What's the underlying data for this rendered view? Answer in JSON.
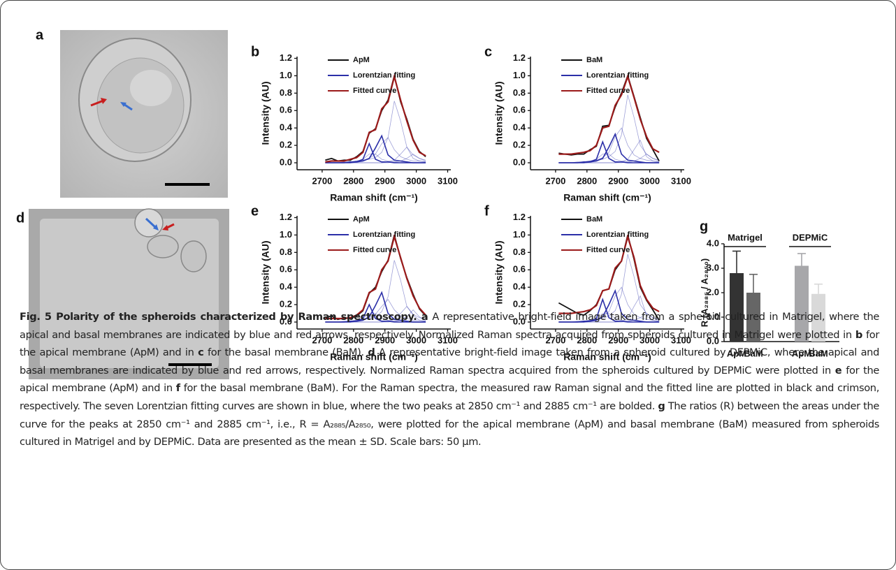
{
  "panels": {
    "a": {
      "label": "a"
    },
    "d": {
      "label": "d"
    }
  },
  "chart_data": [
    {
      "type": "line",
      "panel_label": "b",
      "x_label": "Raman shift (cm⁻¹)",
      "y_label": "Intensity (AU)",
      "xlim": [
        2620,
        3110
      ],
      "xticks": [
        2700,
        2800,
        2900,
        3000,
        3100
      ],
      "ylim": [
        -0.08,
        1.22
      ],
      "yticks": [
        {
          "value": 0,
          "label": "0.0"
        },
        0.2,
        0.4,
        0.6,
        0.8,
        {
          "value": 1,
          "label": "1.0"
        },
        1.2
      ],
      "x": [
        2710,
        2730,
        2750,
        2770,
        2790,
        2810,
        2830,
        2850,
        2870,
        2890,
        2910,
        2930,
        2950,
        2970,
        2990,
        3010,
        3030
      ],
      "bold_components": [
        0,
        1
      ],
      "series": [
        {
          "name": "ApM",
          "color": "#111111",
          "values": [
            0.03,
            0.05,
            0.02,
            0.03,
            0.03,
            0.07,
            0.13,
            0.34,
            0.39,
            0.6,
            0.72,
            1.0,
            0.7,
            0.5,
            0.27,
            0.13,
            0.07
          ]
        },
        {
          "name": "Lorentzian fitting",
          "color": "#2b2fa8",
          "components": [
            [
              0,
              0,
              0,
              0,
              0.01,
              0.01,
              0.04,
              0.22,
              0.04,
              0.01,
              0.01,
              0,
              0,
              0,
              0,
              0,
              0
            ],
            [
              0,
              0,
              0,
              0,
              0,
              0.01,
              0.02,
              0.05,
              0.17,
              0.31,
              0.09,
              0.03,
              0.02,
              0.01,
              0,
              0,
              0
            ],
            [
              0,
              0,
              0,
              0.01,
              0.01,
              0.02,
              0.03,
              0.05,
              0.1,
              0.22,
              0.29,
              0.15,
              0.07,
              0.04,
              0.02,
              0.02,
              0.01
            ],
            [
              0,
              0,
              0,
              0,
              0.01,
              0.02,
              0.03,
              0.04,
              0.06,
              0.12,
              0.29,
              0.71,
              0.48,
              0.18,
              0.09,
              0.05,
              0.03
            ],
            [
              0,
              0,
              0,
              0,
              0,
              0,
              0,
              0,
              0,
              0,
              0.01,
              0.03,
              0.1,
              0.18,
              0.05,
              0.02,
              0.01
            ],
            [
              0,
              0,
              0,
              0,
              0,
              0,
              0,
              0,
              0,
              0,
              0,
              0.01,
              0.02,
              0.05,
              0.1,
              0.05,
              0.02
            ],
            [
              0,
              0,
              0,
              0,
              0.01,
              0.02,
              0.04,
              0.1,
              0.1,
              0.04,
              0.02,
              0.01,
              0,
              0,
              0,
              0,
              0
            ]
          ]
        },
        {
          "name": "Fitted curve",
          "color": "#9b1b1b",
          "values": [
            0.01,
            0.02,
            0.02,
            0.02,
            0.04,
            0.06,
            0.12,
            0.35,
            0.38,
            0.62,
            0.7,
            0.99,
            0.72,
            0.48,
            0.26,
            0.12,
            0.08
          ]
        }
      ]
    },
    {
      "type": "line",
      "panel_label": "c",
      "x_label": "Raman shift (cm⁻¹)",
      "y_label": "Intensity (AU)",
      "xlim": [
        2620,
        3110
      ],
      "xticks": [
        2700,
        2800,
        2900,
        3000,
        3100
      ],
      "ylim": [
        -0.08,
        1.22
      ],
      "yticks": [
        {
          "value": 0,
          "label": "0.0"
        },
        0.2,
        0.4,
        0.6,
        0.8,
        {
          "value": 1,
          "label": "1.0"
        },
        1.2
      ],
      "x": [
        2710,
        2730,
        2750,
        2770,
        2790,
        2810,
        2830,
        2850,
        2870,
        2890,
        2910,
        2930,
        2950,
        2970,
        2990,
        3010,
        3030
      ],
      "bold_components": [
        0,
        1
      ],
      "series": [
        {
          "name": "BaM",
          "color": "#111111",
          "values": [
            0.11,
            0.1,
            0.09,
            0.1,
            0.1,
            0.15,
            0.19,
            0.42,
            0.43,
            0.64,
            0.8,
            1.0,
            0.76,
            0.52,
            0.28,
            0.15,
            0.02
          ]
        },
        {
          "name": "Lorentzian fitting",
          "color": "#2b2fa8",
          "components": [
            [
              0,
              0,
              0,
              0,
              0.01,
              0.01,
              0.04,
              0.24,
              0.05,
              0.01,
              0.01,
              0,
              0,
              0,
              0,
              0,
              0
            ],
            [
              0,
              0,
              0,
              0,
              0,
              0.01,
              0.02,
              0.05,
              0.18,
              0.33,
              0.1,
              0.03,
              0.02,
              0.01,
              0,
              0,
              0
            ],
            [
              0,
              0,
              0,
              0.01,
              0.01,
              0.02,
              0.03,
              0.06,
              0.12,
              0.3,
              0.4,
              0.2,
              0.09,
              0.05,
              0.03,
              0.02,
              0.01
            ],
            [
              0,
              0,
              0,
              0,
              0.01,
              0.02,
              0.03,
              0.04,
              0.07,
              0.13,
              0.32,
              0.78,
              0.52,
              0.2,
              0.1,
              0.05,
              0.03
            ],
            [
              0,
              0,
              0,
              0,
              0,
              0,
              0,
              0,
              0,
              0,
              0.01,
              0.04,
              0.15,
              0.26,
              0.07,
              0.02,
              0.01
            ],
            [
              0,
              0,
              0,
              0,
              0,
              0,
              0,
              0,
              0,
              0,
              0,
              0.01,
              0.02,
              0.05,
              0.1,
              0.05,
              0.02
            ],
            [
              0,
              0,
              0,
              0,
              0.01,
              0.02,
              0.04,
              0.1,
              0.1,
              0.04,
              0.02,
              0.01,
              0,
              0,
              0,
              0,
              0
            ]
          ]
        },
        {
          "name": "Fitted curve",
          "color": "#9b1b1b",
          "values": [
            0.1,
            0.1,
            0.1,
            0.11,
            0.12,
            0.14,
            0.2,
            0.4,
            0.42,
            0.66,
            0.78,
            0.99,
            0.75,
            0.5,
            0.3,
            0.16,
            0.12
          ]
        }
      ]
    },
    {
      "type": "line",
      "panel_label": "e",
      "x_label": "Raman shift (cm⁻¹)",
      "y_label": "Intensity (AU)",
      "xlim": [
        2620,
        3110
      ],
      "xticks": [
        2700,
        2800,
        2900,
        3000,
        3100
      ],
      "ylim": [
        -0.08,
        1.22
      ],
      "yticks": [
        {
          "value": 0,
          "label": "0.0"
        },
        0.2,
        0.4,
        0.6,
        0.8,
        {
          "value": 1,
          "label": "1.0"
        },
        1.2
      ],
      "x": [
        2710,
        2730,
        2750,
        2770,
        2790,
        2810,
        2830,
        2850,
        2870,
        2890,
        2910,
        2930,
        2950,
        2970,
        2990,
        3010,
        3030
      ],
      "bold_components": [
        0,
        1
      ],
      "series": [
        {
          "name": "ApM",
          "color": "#111111",
          "values": [
            0.05,
            0.07,
            0.03,
            0.05,
            0.04,
            0.07,
            0.13,
            0.33,
            0.4,
            0.58,
            0.71,
            1.0,
            0.73,
            0.51,
            0.32,
            0.15,
            0.07
          ]
        },
        {
          "name": "Lorentzian fitting",
          "color": "#2b2fa8",
          "components": [
            [
              0,
              0,
              0,
              0,
              0.01,
              0.01,
              0.04,
              0.2,
              0.04,
              0.01,
              0.01,
              0,
              0,
              0,
              0,
              0,
              0
            ],
            [
              0,
              0,
              0,
              0,
              0,
              0.01,
              0.02,
              0.06,
              0.19,
              0.34,
              0.1,
              0.03,
              0.02,
              0.01,
              0,
              0,
              0
            ],
            [
              0,
              0,
              0,
              0.01,
              0.01,
              0.02,
              0.03,
              0.05,
              0.09,
              0.18,
              0.26,
              0.14,
              0.07,
              0.04,
              0.02,
              0.02,
              0.01
            ],
            [
              0,
              0,
              0,
              0,
              0.01,
              0.02,
              0.03,
              0.04,
              0.06,
              0.12,
              0.29,
              0.71,
              0.48,
              0.18,
              0.09,
              0.05,
              0.03
            ],
            [
              0,
              0,
              0,
              0,
              0,
              0,
              0,
              0,
              0,
              0,
              0.01,
              0.03,
              0.1,
              0.18,
              0.08,
              0.02,
              0.01
            ],
            [
              0,
              0,
              0,
              0,
              0,
              0,
              0,
              0,
              0,
              0,
              0,
              0.01,
              0.02,
              0.06,
              0.14,
              0.06,
              0.02
            ],
            [
              0,
              0,
              0,
              0,
              0.01,
              0.02,
              0.04,
              0.1,
              0.1,
              0.04,
              0.02,
              0.01,
              0,
              0,
              0,
              0,
              0
            ]
          ]
        },
        {
          "name": "Fitted curve",
          "color": "#9b1b1b",
          "values": [
            0.04,
            0.04,
            0.04,
            0.04,
            0.05,
            0.08,
            0.14,
            0.34,
            0.38,
            0.6,
            0.7,
            0.98,
            0.74,
            0.5,
            0.3,
            0.16,
            0.08
          ]
        }
      ]
    },
    {
      "type": "line",
      "panel_label": "f",
      "x_label": "Raman shift (cm⁻¹)",
      "y_label": "Intensity (AU)",
      "xlim": [
        2620,
        3110
      ],
      "xticks": [
        2700,
        2800,
        2900,
        3000,
        3100
      ],
      "ylim": [
        -0.08,
        1.22
      ],
      "yticks": [
        {
          "value": 0,
          "label": "0.0"
        },
        0.2,
        0.4,
        0.6,
        0.8,
        {
          "value": 1,
          "label": "1.0"
        },
        1.2
      ],
      "x": [
        2710,
        2730,
        2750,
        2770,
        2790,
        2810,
        2830,
        2850,
        2870,
        2890,
        2910,
        2930,
        2950,
        2970,
        2990,
        3010,
        3030
      ],
      "bold_components": [
        0,
        1
      ],
      "series": [
        {
          "name": "BaM",
          "color": "#111111",
          "values": [
            0.22,
            0.18,
            0.14,
            0.1,
            0.08,
            0.13,
            0.2,
            0.36,
            0.38,
            0.6,
            0.7,
            1.0,
            0.72,
            0.4,
            0.25,
            0.14,
            0.02
          ]
        },
        {
          "name": "Lorentzian fitting",
          "color": "#2b2fa8",
          "components": [
            [
              0,
              0,
              0,
              0,
              0.01,
              0.01,
              0.04,
              0.26,
              0.05,
              0.01,
              0.01,
              0,
              0,
              0,
              0,
              0,
              0
            ],
            [
              0,
              0,
              0,
              0,
              0,
              0.01,
              0.02,
              0.06,
              0.2,
              0.36,
              0.1,
              0.03,
              0.02,
              0.01,
              0,
              0,
              0
            ],
            [
              0,
              0,
              0,
              0.01,
              0.01,
              0.02,
              0.03,
              0.06,
              0.12,
              0.3,
              0.4,
              0.2,
              0.09,
              0.05,
              0.03,
              0.02,
              0.01
            ],
            [
              0,
              0,
              0,
              0,
              0.01,
              0.02,
              0.03,
              0.04,
              0.07,
              0.13,
              0.32,
              0.78,
              0.52,
              0.2,
              0.1,
              0.05,
              0.03
            ],
            [
              0,
              0,
              0,
              0,
              0,
              0,
              0,
              0,
              0,
              0,
              0.01,
              0.04,
              0.18,
              0.3,
              0.07,
              0.02,
              0.01
            ],
            [
              0,
              0,
              0,
              0,
              0,
              0,
              0,
              0,
              0,
              0,
              0,
              0.01,
              0.02,
              0.05,
              0.1,
              0.05,
              0.02
            ],
            [
              0,
              0,
              0,
              0,
              0.01,
              0.02,
              0.04,
              0.1,
              0.1,
              0.04,
              0.02,
              0.01,
              0,
              0,
              0,
              0,
              0
            ]
          ]
        },
        {
          "name": "Fitted curve",
          "color": "#9b1b1b",
          "values": [
            0.1,
            0.1,
            0.1,
            0.11,
            0.12,
            0.14,
            0.19,
            0.36,
            0.38,
            0.62,
            0.7,
            0.98,
            0.74,
            0.42,
            0.26,
            0.16,
            0.12
          ]
        }
      ]
    },
    {
      "type": "bar",
      "panel_label": "g",
      "y_label": "R (A₂₈₈₅ / A₂₈₅₀)",
      "groups": [
        "Matrigel",
        "DEPMiC"
      ],
      "categories": [
        "ApM",
        "BaM",
        "ApM",
        "BaM"
      ],
      "values": [
        2.8,
        2.0,
        3.1,
        1.95
      ],
      "errors": [
        0.9,
        0.75,
        0.5,
        0.4
      ],
      "colors": [
        "#333333",
        "#666666",
        "#a7a7aa",
        "#d9d9d9"
      ],
      "ylim": [
        0,
        4
      ],
      "yticks": [
        {
          "value": 0,
          "label": "0.0"
        },
        {
          "value": 1,
          "label": "1.0"
        },
        {
          "value": 2,
          "label": "2.0"
        },
        {
          "value": 3,
          "label": "3.0"
        },
        {
          "value": 4,
          "label": "4.0"
        }
      ]
    }
  ],
  "caption": {
    "parts": [
      {
        "text": "Fig. 5 Polarity of the spheroids characterized by Raman spectroscopy.",
        "bold": true
      },
      {
        "text": " a",
        "bold": true
      },
      " A representative bright-field image taken from a spheroid cultured in Matrigel, where the apical and basal membranes are indicated by blue and red arrows, respectively. Normalized Raman spectra acquired from spheroids cultured in Matrigel were plotted in ",
      {
        "text": "b",
        "bold": true
      },
      " for the apical membrane (ApM) and in ",
      {
        "text": "c",
        "bold": true
      },
      " for the basal membrane (BaM). ",
      {
        "text": "d",
        "bold": true
      },
      " A representative bright-field image taken from a spheroid cultured by DEPMiC, where the apical and basal membranes are indicated by blue and red arrows, respectively. Normalized Raman spectra acquired from the spheroids cultured by DEPMiC were plotted in ",
      {
        "text": "e",
        "bold": true
      },
      " for the apical membrane (ApM) and in ",
      {
        "text": "f",
        "bold": true
      },
      " for the basal membrane (BaM). For the Raman spectra, the measured raw Raman signal and the fitted line are plotted in black and crimson, respectively. The seven Lorentzian fitting curves are shown in blue, where the two peaks at 2850 cm⁻¹ and 2885 cm⁻¹ are bolded. ",
      {
        "text": "g",
        "bold": true
      },
      " The ratios (R) between the areas under the curve for the peaks at 2850 cm⁻¹ and 2885 cm⁻¹, i.e., R = A₂₈₈₅/A₂₈₅₀, were plotted for the apical membrane (ApM) and basal membrane (BaM) measured from spheroids cultured in Matrigel and by DEPMiC. Data are presented as the mean ± SD. Scale bars: 50 µm."
    ]
  }
}
